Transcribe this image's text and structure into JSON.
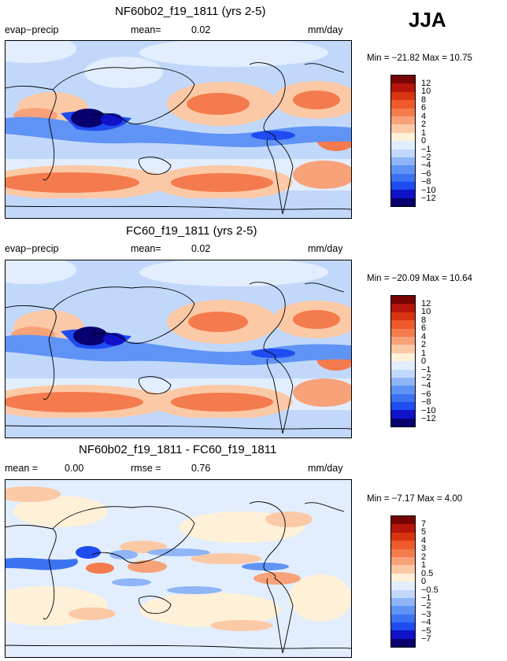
{
  "season": "JJA",
  "colors": {
    "scale": [
      "#08006e",
      "#0f12c8",
      "#1f4cf0",
      "#3a72f2",
      "#5f93f5",
      "#8fb5f8",
      "#c2d8fb",
      "#e2eefd",
      "#fff0d8",
      "#fcc9a6",
      "#f8a27a",
      "#f47b4e",
      "#ee5a2a",
      "#d93412",
      "#b5150a",
      "#7a0404"
    ]
  },
  "panels": [
    {
      "title": "NF60b02_f19_1811 (yrs 2-5)",
      "left_label": "evap−precip",
      "mid_label": "mean=",
      "mid_value": "0.02",
      "units": "mm/day",
      "minmax": "Min = −21.82 Max =  10.75",
      "ticks": [
        "12",
        "10",
        "8",
        "6",
        "4",
        "2",
        "1",
        "0",
        "−1",
        "−2",
        "−4",
        "−6",
        "−8",
        "−10",
        "−12"
      ]
    },
    {
      "title": "FC60_f19_1811 (yrs 2-5)",
      "left_label": "evap−precip",
      "mid_label": "mean=",
      "mid_value": "0.02",
      "units": "mm/day",
      "minmax": "Min = −20.09 Max =  10.64",
      "ticks": [
        "12",
        "10",
        "8",
        "6",
        "4",
        "2",
        "1",
        "0",
        "−1",
        "−2",
        "−4",
        "−6",
        "−8",
        "−10",
        "−12"
      ]
    },
    {
      "title": "NF60b02_f19_1811 - FC60_f19_1811",
      "left_label": "mean =",
      "left_value": "0.00",
      "mid_label": "rmse =",
      "mid_value": "0.76",
      "units": "mm/day",
      "minmax": "Min = −7.17 Max =   4.00",
      "ticks": [
        "7",
        "5",
        "4",
        "3",
        "2",
        "1",
        "0.5",
        "0",
        "−0.5",
        "−1",
        "−2",
        "−3",
        "−4",
        "−5",
        "−7"
      ]
    }
  ]
}
